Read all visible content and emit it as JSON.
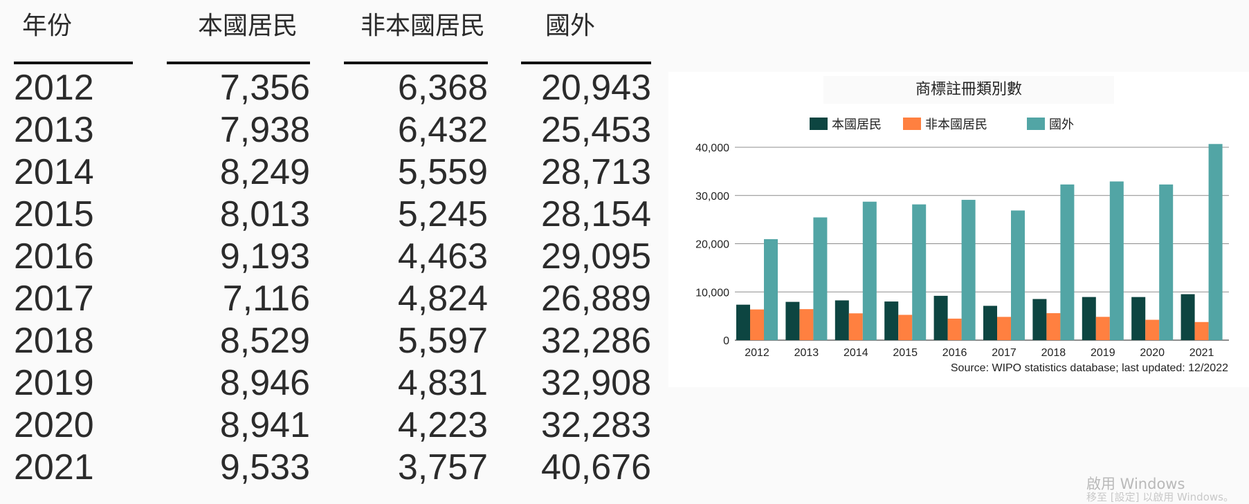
{
  "table": {
    "headers": [
      "年份",
      "本國居民",
      "非本國居民",
      "國外"
    ],
    "rows": [
      [
        "2012",
        "7,356",
        "6,368",
        "20,943"
      ],
      [
        "2013",
        "7,938",
        "6,432",
        "25,453"
      ],
      [
        "2014",
        "8,249",
        "5,559",
        "28,713"
      ],
      [
        "2015",
        "8,013",
        "5,245",
        "28,154"
      ],
      [
        "2016",
        "9,193",
        "4,463",
        "29,095"
      ],
      [
        "2017",
        "7,116",
        "4,824",
        "26,889"
      ],
      [
        "2018",
        "8,529",
        "5,597",
        "32,286"
      ],
      [
        "2019",
        "8,946",
        "4,831",
        "32,908"
      ],
      [
        "2020",
        "8,941",
        "4,223",
        "32,283"
      ],
      [
        "2021",
        "9,533",
        "3,757",
        "40,676"
      ]
    ]
  },
  "chart_data": {
    "type": "bar",
    "title": "商標註冊類別數",
    "categories": [
      "2012",
      "2013",
      "2014",
      "2015",
      "2016",
      "2017",
      "2018",
      "2019",
      "2020",
      "2021"
    ],
    "series": [
      {
        "name": "本國居民",
        "color": "#0d4541",
        "values": [
          7356,
          7938,
          8249,
          8013,
          9193,
          7116,
          8529,
          8946,
          8941,
          9533
        ]
      },
      {
        "name": "非本國居民",
        "color": "#ff8040",
        "values": [
          6368,
          6432,
          5559,
          5245,
          4463,
          4824,
          5597,
          4831,
          4223,
          3757
        ]
      },
      {
        "name": "國外",
        "color": "#52a5a5",
        "values": [
          20943,
          25453,
          28713,
          28154,
          29095,
          26889,
          32286,
          32908,
          32283,
          40676
        ]
      }
    ],
    "y_ticks": [
      0,
      10000,
      20000,
      30000,
      40000
    ],
    "y_tick_labels": [
      "0",
      "10,000",
      "20,000",
      "30,000",
      "40,000"
    ],
    "ylim": [
      0,
      40000
    ],
    "grid": true,
    "legend_position": "top",
    "source": "Source: WIPO statistics database; last updated: 12/2022"
  },
  "watermark": {
    "line1": "啟用 Windows",
    "line2": "移至 [設定] 以啟用 Windows。"
  }
}
